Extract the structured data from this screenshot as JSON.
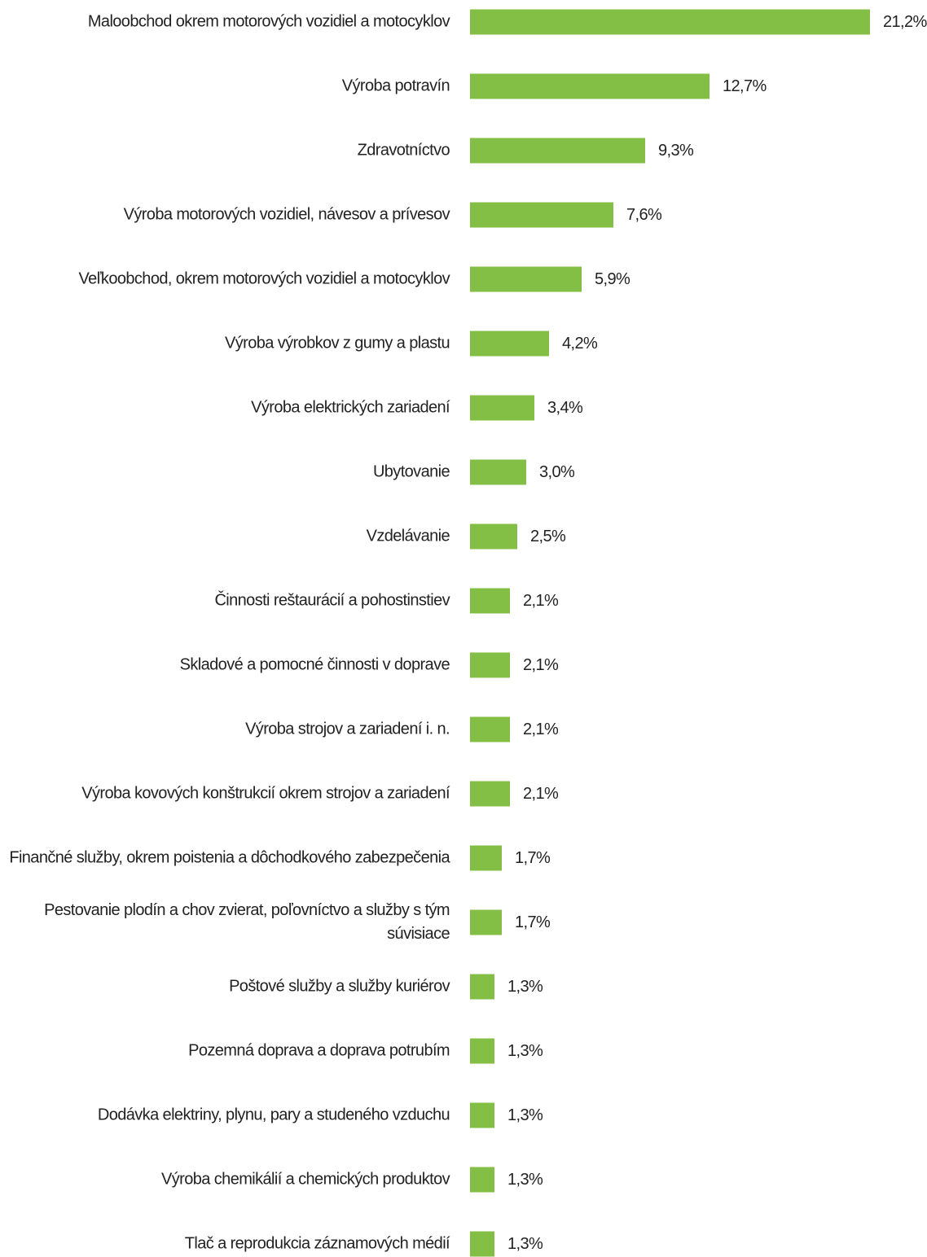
{
  "chart_data": {
    "type": "bar",
    "orientation": "horizontal",
    "bar_color": "#83bf45",
    "grid": false,
    "legend": "none",
    "xlim": [
      0,
      21.2
    ],
    "categories": [
      "Maloobchod okrem motorových vozidiel a motocyklov",
      "Výroba potravín",
      "Zdravotníctvo",
      "Výroba motorových vozidiel, návesov a prívesov",
      "Veľkoobchod, okrem motorových vozidiel a motocyklov",
      "Výroba výrobkov z gumy a plastu",
      "Výroba elektrických zariadení",
      "Ubytovanie",
      "Vzdelávanie",
      "Činnosti reštaurácií a pohostinstiev",
      "Skladové a pomocné činnosti v doprave",
      "Výroba strojov a zariadení i. n.",
      "Výroba kovových konštrukcií okrem strojov a zariadení",
      "Finančné služby, okrem poistenia a dôchodkového zabezpečenia",
      "Pestovanie plodín a chov zvierat, poľovníctvo a služby s tým súvisiace",
      "Poštové služby a služby kuriérov",
      "Pozemná doprava a doprava potrubím",
      "Dodávka elektriny, plynu, pary a studeného vzduchu",
      "Výroba chemikálií a chemických produktov",
      "Tlač a reprodukcia záznamových médií"
    ],
    "values": [
      21.2,
      12.7,
      9.3,
      7.6,
      5.9,
      4.2,
      3.4,
      3.0,
      2.5,
      2.1,
      2.1,
      2.1,
      2.1,
      1.7,
      1.7,
      1.3,
      1.3,
      1.3,
      1.3,
      1.3
    ],
    "value_labels": [
      "21,2%",
      "12,7%",
      "9,3%",
      "7,6%",
      "5,9%",
      "4,2%",
      "3,4%",
      "3,0%",
      "2,5%",
      "2,1%",
      "2,1%",
      "2,1%",
      "2,1%",
      "1,7%",
      "1,7%",
      "1,3%",
      "1,3%",
      "1,3%",
      "1,3%",
      "1,3%"
    ]
  }
}
